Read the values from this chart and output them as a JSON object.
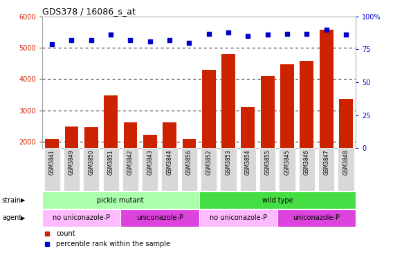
{
  "title": "GDS378 / 16086_s_at",
  "samples": [
    "GSM3841",
    "GSM3849",
    "GSM3850",
    "GSM3851",
    "GSM3842",
    "GSM3843",
    "GSM3844",
    "GSM3856",
    "GSM3852",
    "GSM3853",
    "GSM3854",
    "GSM3855",
    "GSM3845",
    "GSM3846",
    "GSM3847",
    "GSM3848"
  ],
  "counts": [
    2100,
    2480,
    2470,
    3470,
    2620,
    2230,
    2610,
    2100,
    4300,
    4800,
    3100,
    4100,
    4480,
    4580,
    5580,
    3370
  ],
  "percentiles": [
    79,
    82,
    82,
    86,
    82,
    81,
    82,
    80,
    87,
    88,
    85,
    86,
    87,
    87,
    90,
    86
  ],
  "ylim_left": [
    1800,
    6000
  ],
  "ylim_right": [
    0,
    100
  ],
  "yticks_left": [
    2000,
    3000,
    4000,
    5000,
    6000
  ],
  "yticks_right": [
    0,
    25,
    50,
    75,
    100
  ],
  "bar_color": "#cc2200",
  "dot_color": "#0000cc",
  "grid_color": "#000000",
  "strain_groups": [
    {
      "label": "pickle mutant",
      "start": 0,
      "end": 8,
      "color": "#aaffaa"
    },
    {
      "label": "wild type",
      "start": 8,
      "end": 16,
      "color": "#44dd44"
    }
  ],
  "agent_groups": [
    {
      "label": "no uniconazole-P",
      "start": 0,
      "end": 4,
      "color": "#ffbbff"
    },
    {
      "label": "uniconazole-P",
      "start": 4,
      "end": 8,
      "color": "#dd44dd"
    },
    {
      "label": "no uniconazole-P",
      "start": 8,
      "end": 12,
      "color": "#ffbbff"
    },
    {
      "label": "uniconazole-P",
      "start": 12,
      "end": 16,
      "color": "#dd44dd"
    }
  ],
  "tick_label_color": "#cc2200",
  "right_tick_color": "#0000cc",
  "title_color": "#000000",
  "strain_label": "strain",
  "agent_label": "agent",
  "legend_items": [
    {
      "label": "count",
      "color": "#cc2200"
    },
    {
      "label": "percentile rank within the sample",
      "color": "#0000cc"
    }
  ]
}
